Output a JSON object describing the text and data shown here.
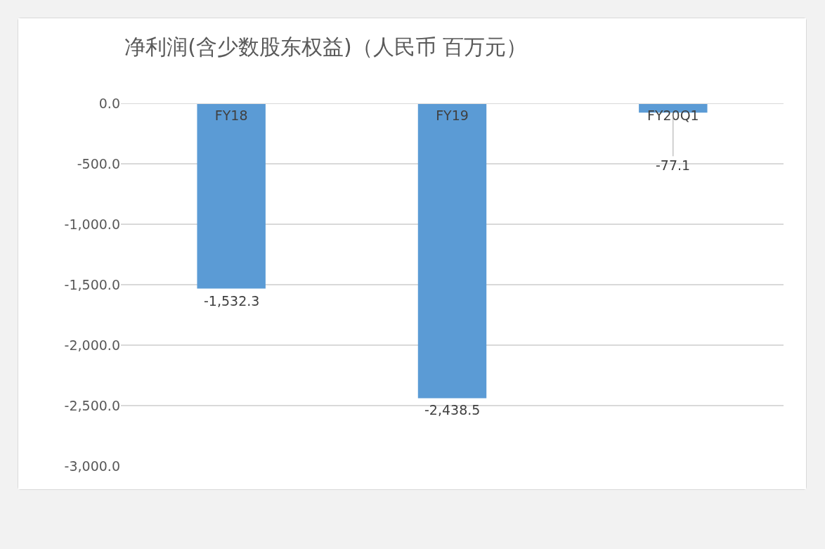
{
  "chart_data": {
    "type": "bar",
    "title": "净利润(含少数股东权益)（人民币 百万元）",
    "categories": [
      "FY18",
      "FY19",
      "FY20Q1"
    ],
    "values": [
      -1532.3,
      -2438.5,
      -77.1
    ],
    "value_labels": [
      "-1,532.3",
      "-2,438.5",
      "-77.1"
    ],
    "color": "#5b9bd5",
    "ylim": [
      -3000,
      0
    ],
    "yticks": [
      {
        "value": 0,
        "label": "0.0"
      },
      {
        "value": -500,
        "label": "-500.0"
      },
      {
        "value": -1000,
        "label": "-1,000.0"
      },
      {
        "value": -1500,
        "label": "-1,500.0"
      },
      {
        "value": -2000,
        "label": "-2,000.0"
      },
      {
        "value": -2500,
        "label": "-2,500.0"
      },
      {
        "value": -3000,
        "label": "-3,000.0"
      }
    ],
    "grid": "y"
  }
}
